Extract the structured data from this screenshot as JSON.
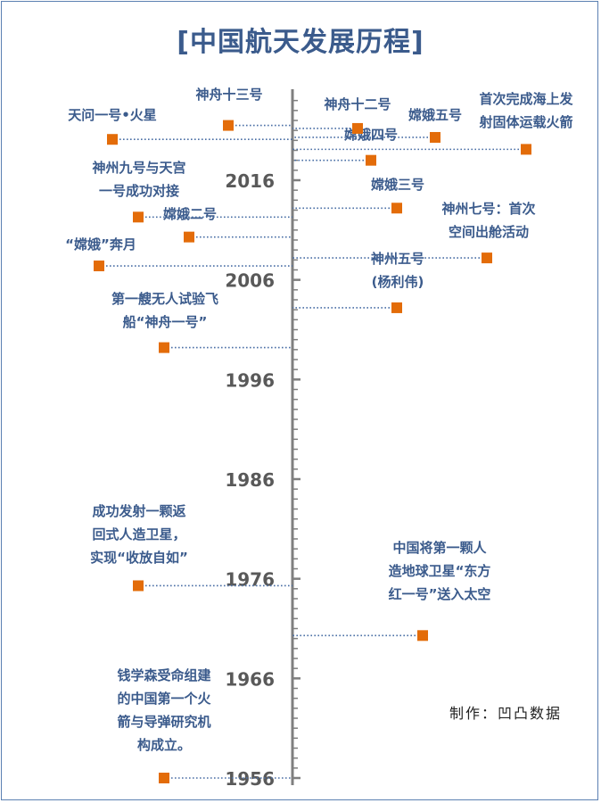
{
  "title": "[中国航天发展历程]",
  "credit": "制作：凹凸数据",
  "chart_data": {
    "type": "scatter",
    "title": "[中国航天发展历程]",
    "yaxis": {
      "min": 1956,
      "max": 2016,
      "ticks": [
        1956,
        1966,
        1976,
        1986,
        1996,
        2006,
        2016
      ]
    },
    "grid": false,
    "legend": "none",
    "marker_color": "#e36c09",
    "line_color": "#4a6fa5",
    "axis_color": "#7f7f7f",
    "label_color": "#3b5b8c",
    "events": [
      {
        "id": "e1956",
        "year": 1956.0,
        "side": "left",
        "lines": [
          "钱学森受命组建",
          "的中国第一个火",
          "箭与导弹研究机",
          "构成立。"
        ]
      },
      {
        "id": "e1970",
        "year": 1970.3,
        "side": "right",
        "lines": [
          "中国将第一颗人",
          "造地球卫星“东方",
          "红一号”送入太空"
        ]
      },
      {
        "id": "e1975",
        "year": 1975.3,
        "side": "left",
        "lines": [
          "成功发射一颗返",
          "回式人造卫星，",
          "实现“收放自如”"
        ]
      },
      {
        "id": "e1999",
        "year": 1999.2,
        "side": "left",
        "lines": [
          "第一艘无人试验飞",
          "船“神舟一号”"
        ]
      },
      {
        "id": "e2003",
        "year": 2003.2,
        "side": "right",
        "lines": [
          "神州五号",
          "(杨利伟)"
        ]
      },
      {
        "id": "e2007",
        "year": 2007.4,
        "side": "left",
        "lines": [
          "“嫦娥”奔月"
        ]
      },
      {
        "id": "e2008",
        "year": 2008.2,
        "side": "right",
        "lines": [
          "神州七号：首次",
          "空间出舱活动"
        ]
      },
      {
        "id": "e2010",
        "year": 2010.3,
        "side": "left",
        "lines": [
          "嫦娥二号"
        ]
      },
      {
        "id": "e2012",
        "year": 2012.3,
        "side": "left",
        "lines": [
          "神州九号与天宫",
          "一号成功对接"
        ]
      },
      {
        "id": "e2013",
        "year": 2013.2,
        "side": "right",
        "lines": [
          "嫦娥三号"
        ]
      },
      {
        "id": "e2018",
        "year": 2018.0,
        "side": "right",
        "lines": [
          "嫦娥四号"
        ]
      },
      {
        "id": "e2019",
        "year": 2019.1,
        "side": "right",
        "lines": [
          "首次完成海上发",
          "射固体运载火箭"
        ]
      },
      {
        "id": "e2020a",
        "year": 2020.1,
        "side": "left",
        "lines": [
          "天问一号•火星"
        ]
      },
      {
        "id": "e2020b",
        "year": 2020.3,
        "side": "right",
        "lines": [
          "嫦娥五号"
        ]
      },
      {
        "id": "e2021a",
        "year": 2021.2,
        "side": "right",
        "lines": [
          "神舟十二号"
        ]
      },
      {
        "id": "e2021b",
        "year": 2021.5,
        "side": "left",
        "lines": [
          "神舟十三号"
        ]
      }
    ]
  }
}
